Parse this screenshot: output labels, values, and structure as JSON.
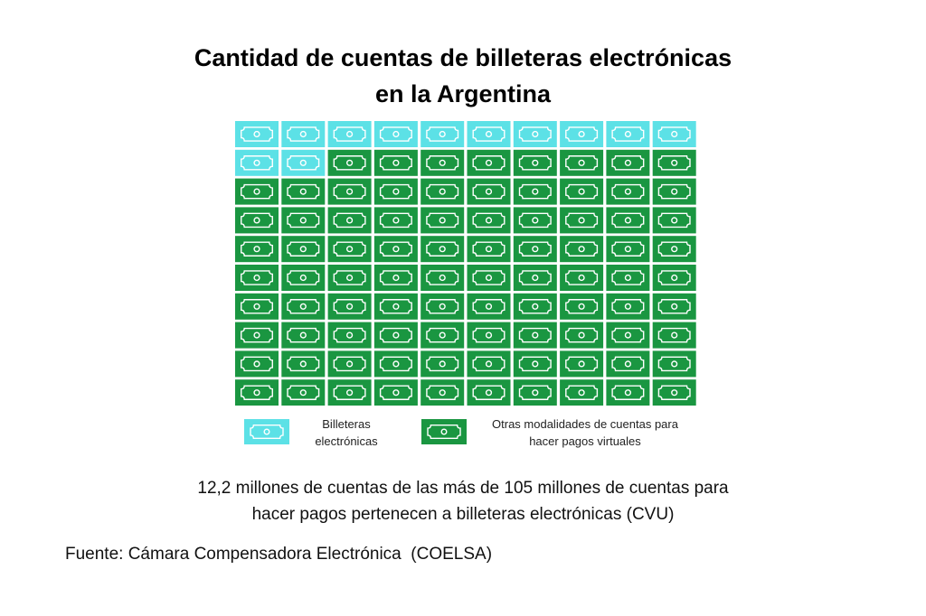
{
  "chart_data": {
    "type": "waffle",
    "title_lines": [
      "Cantidad de cuentas de billeteras electrónicas",
      "en la Argentina"
    ],
    "rows": 10,
    "columns": 10,
    "total_icons": 100,
    "series": [
      {
        "name": "Billeteras electrónicas",
        "icons": 12,
        "color": "#5ce1e6"
      },
      {
        "name": "Otras modalidades de cuentas para hacer pagos virtuales",
        "icons": 88,
        "color": "#1a9641"
      }
    ],
    "legend_placement": "bottom",
    "legend": [
      {
        "lines": [
          "Billeteras",
          "electrónicas"
        ],
        "color": "#5ce1e6"
      },
      {
        "lines": [
          "Otras modalidades de cuentas para",
          "hacer pagos virtuales"
        ],
        "color": "#1a9641"
      }
    ],
    "summary_lines": [
      "12,2 millones de cuentas de las más de 105 millones de cuentas para",
      "hacer pagos pertenecen a billeteras electrónicas (CVU)"
    ],
    "source": "Fuente: Cámara Compensadora Electrónica  (COELSA)",
    "icon": "banknote-icon"
  }
}
